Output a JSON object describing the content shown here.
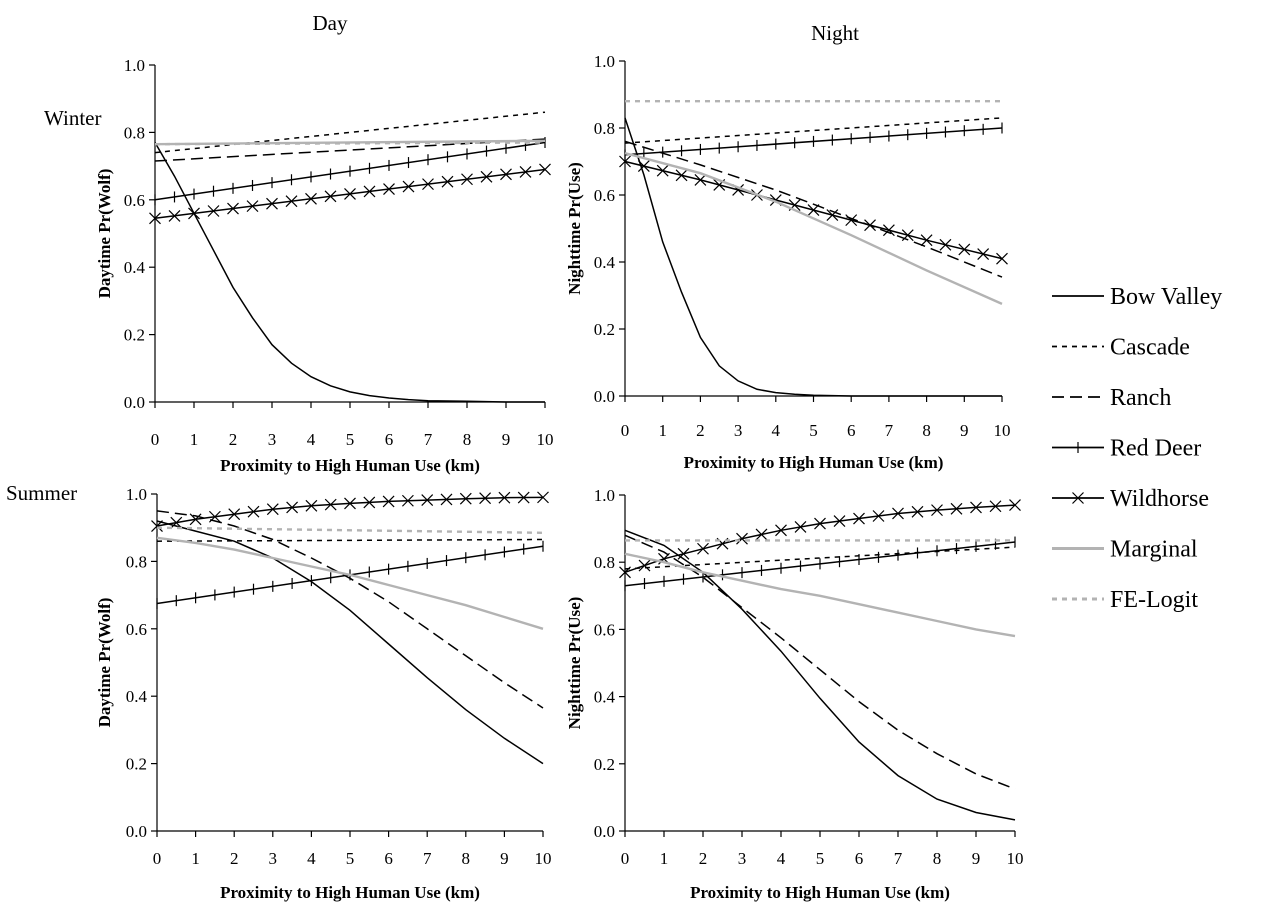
{
  "column_headers": [
    "Day",
    "Night"
  ],
  "row_headers": [
    "Winter",
    "Summer"
  ],
  "legend": {
    "items": [
      {
        "name": "Bow Valley",
        "color": "#000000",
        "dash": "solid",
        "marker": "none"
      },
      {
        "name": "Cascade",
        "color": "#000000",
        "dash": "short-dash",
        "marker": "none"
      },
      {
        "name": "Ranch",
        "color": "#000000",
        "dash": "long-dash",
        "marker": "none"
      },
      {
        "name": "Red Deer",
        "color": "#000000",
        "dash": "solid",
        "marker": "plus"
      },
      {
        "name": "Wildhorse",
        "color": "#000000",
        "dash": "solid",
        "marker": "x"
      },
      {
        "name": "Marginal",
        "color": "#b3b3b3",
        "dash": "solid",
        "marker": "none"
      },
      {
        "name": "FE-Logit",
        "color": "#b3b3b3",
        "dash": "short-dash",
        "marker": "none"
      }
    ],
    "placement": "right"
  },
  "chart_data": [
    {
      "type": "line",
      "panel": "winter-day",
      "xlabel": "Proximity to High Human Use (km)",
      "ylabel": "Daytime Pr(Wolf)",
      "x_ticks": [
        "0",
        "1",
        "2",
        "3",
        "4",
        "5",
        "6",
        "7",
        "8",
        "9",
        "10"
      ],
      "y_ticks": [
        "0.0",
        "0.2",
        "0.4",
        "0.6",
        "0.8",
        "1.0"
      ],
      "xlim": [
        0,
        10
      ],
      "ylim": [
        0,
        1
      ],
      "grid": false,
      "series": [
        {
          "name": "Bow Valley",
          "x": [
            0,
            0.5,
            1,
            1.5,
            2,
            2.5,
            3,
            3.5,
            4,
            4.5,
            5,
            5.5,
            6,
            6.5,
            7,
            7.5,
            8,
            9,
            10
          ],
          "values": [
            0.77,
            0.67,
            0.56,
            0.45,
            0.34,
            0.25,
            0.17,
            0.115,
            0.075,
            0.048,
            0.03,
            0.019,
            0.012,
            0.007,
            0.004,
            0.003,
            0.002,
            0.0,
            0.0
          ]
        },
        {
          "name": "Cascade",
          "x": [
            0,
            10
          ],
          "values": [
            0.74,
            0.86
          ]
        },
        {
          "name": "Ranch",
          "x": [
            0,
            10
          ],
          "values": [
            0.715,
            0.78
          ]
        },
        {
          "name": "Red Deer",
          "x": [
            0,
            10
          ],
          "values": [
            0.6,
            0.77
          ]
        },
        {
          "name": "Wildhorse",
          "x": [
            0,
            10
          ],
          "values": [
            0.545,
            0.69
          ]
        },
        {
          "name": "Marginal",
          "x": [
            0,
            10
          ],
          "values": [
            0.765,
            0.775
          ]
        },
        {
          "name": "FE-Logit",
          "x": [
            0,
            10
          ],
          "values": [
            0.765,
            0.77
          ]
        }
      ]
    },
    {
      "type": "line",
      "panel": "winter-night",
      "xlabel": "Proximity to High Human Use (km)",
      "ylabel": "Nighttime Pr(Use)",
      "x_ticks": [
        "0",
        "1",
        "2",
        "3",
        "4",
        "5",
        "6",
        "7",
        "8",
        "9",
        "10"
      ],
      "y_ticks": [
        "0.0",
        "0.2",
        "0.4",
        "0.6",
        "0.8",
        "1.0"
      ],
      "xlim": [
        0,
        10
      ],
      "ylim": [
        0,
        1
      ],
      "grid": false,
      "series": [
        {
          "name": "Bow Valley",
          "x": [
            0,
            0.5,
            1,
            1.5,
            2,
            2.5,
            3,
            3.5,
            4,
            4.5,
            5,
            6,
            7,
            8,
            9,
            10
          ],
          "values": [
            0.83,
            0.66,
            0.46,
            0.31,
            0.175,
            0.09,
            0.045,
            0.02,
            0.01,
            0.005,
            0.002,
            0.0,
            0.0,
            0.0,
            0.0,
            0.0
          ]
        },
        {
          "name": "Cascade",
          "x": [
            0,
            10
          ],
          "values": [
            0.755,
            0.83
          ]
        },
        {
          "name": "Ranch",
          "x": [
            0,
            2,
            4,
            6,
            8,
            10
          ],
          "values": [
            0.76,
            0.69,
            0.615,
            0.53,
            0.445,
            0.355
          ]
        },
        {
          "name": "Red Deer",
          "x": [
            0,
            10
          ],
          "values": [
            0.72,
            0.8
          ]
        },
        {
          "name": "Wildhorse",
          "x": [
            0,
            2,
            4,
            6,
            8,
            10
          ],
          "values": [
            0.7,
            0.645,
            0.585,
            0.525,
            0.465,
            0.41
          ]
        },
        {
          "name": "Marginal",
          "x": [
            0,
            2,
            4,
            6,
            8,
            10
          ],
          "values": [
            0.725,
            0.665,
            0.58,
            0.48,
            0.375,
            0.275
          ]
        },
        {
          "name": "FE-Logit",
          "x": [
            0,
            10
          ],
          "values": [
            0.88,
            0.88
          ]
        }
      ]
    },
    {
      "type": "line",
      "panel": "summer-day",
      "xlabel": "Proximity to High Human Use (km)",
      "ylabel": "Daytime Pr(Wolf)",
      "x_ticks": [
        "0",
        "1",
        "2",
        "3",
        "4",
        "5",
        "6",
        "7",
        "8",
        "9",
        "10"
      ],
      "y_ticks": [
        "0.0",
        "0.2",
        "0.4",
        "0.6",
        "0.8",
        "1.0"
      ],
      "xlim": [
        0,
        10
      ],
      "ylim": [
        0,
        1
      ],
      "grid": false,
      "series": [
        {
          "name": "Bow Valley",
          "x": [
            0,
            1,
            2,
            3,
            4,
            5,
            6,
            7,
            8,
            9,
            10
          ],
          "values": [
            0.92,
            0.89,
            0.86,
            0.81,
            0.74,
            0.655,
            0.555,
            0.455,
            0.36,
            0.275,
            0.2
          ]
        },
        {
          "name": "Cascade",
          "x": [
            0,
            10
          ],
          "values": [
            0.86,
            0.865
          ]
        },
        {
          "name": "Ranch",
          "x": [
            0,
            1,
            2,
            3,
            4,
            5,
            6,
            7,
            8,
            9,
            10
          ],
          "values": [
            0.95,
            0.935,
            0.905,
            0.865,
            0.81,
            0.75,
            0.68,
            0.6,
            0.52,
            0.44,
            0.365
          ]
        },
        {
          "name": "Red Deer",
          "x": [
            0,
            10
          ],
          "values": [
            0.675,
            0.845
          ]
        },
        {
          "name": "Wildhorse",
          "x": [
            0,
            1,
            2,
            3,
            4,
            5,
            6,
            7,
            8,
            9,
            10
          ],
          "values": [
            0.905,
            0.925,
            0.94,
            0.955,
            0.965,
            0.972,
            0.978,
            0.982,
            0.986,
            0.989,
            0.99
          ]
        },
        {
          "name": "Marginal",
          "x": [
            0,
            1,
            2,
            3,
            4,
            5,
            6,
            7,
            8,
            9,
            10
          ],
          "values": [
            0.87,
            0.855,
            0.835,
            0.81,
            0.785,
            0.76,
            0.73,
            0.7,
            0.67,
            0.635,
            0.6
          ]
        },
        {
          "name": "FE-Logit",
          "x": [
            0,
            10
          ],
          "values": [
            0.9,
            0.885
          ]
        }
      ]
    },
    {
      "type": "line",
      "panel": "summer-night",
      "xlabel": "Proximity to High Human Use (km)",
      "ylabel": "Nighttime Pr(Use)",
      "x_ticks": [
        "0",
        "1",
        "2",
        "3",
        "4",
        "5",
        "6",
        "7",
        "8",
        "9",
        "10"
      ],
      "y_ticks": [
        "0.0",
        "0.2",
        "0.4",
        "0.6",
        "0.8",
        "1.0"
      ],
      "xlim": [
        0,
        10
      ],
      "ylim": [
        0,
        1
      ],
      "grid": false,
      "series": [
        {
          "name": "Bow Valley",
          "x": [
            0,
            1,
            2,
            3,
            4,
            5,
            6,
            7,
            8,
            9,
            10
          ],
          "values": [
            0.895,
            0.85,
            0.77,
            0.66,
            0.535,
            0.395,
            0.265,
            0.165,
            0.095,
            0.055,
            0.033
          ]
        },
        {
          "name": "Cascade",
          "x": [
            0,
            10
          ],
          "values": [
            0.78,
            0.845
          ]
        },
        {
          "name": "Ranch",
          "x": [
            0,
            1,
            2,
            3,
            4,
            5,
            6,
            7,
            8,
            9,
            10
          ],
          "values": [
            0.88,
            0.83,
            0.755,
            0.665,
            0.575,
            0.48,
            0.385,
            0.3,
            0.23,
            0.17,
            0.125
          ]
        },
        {
          "name": "Red Deer",
          "x": [
            0,
            10
          ],
          "values": [
            0.73,
            0.86
          ]
        },
        {
          "name": "Wildhorse",
          "x": [
            0,
            1,
            2,
            3,
            4,
            5,
            6,
            7,
            8,
            9,
            10
          ],
          "values": [
            0.77,
            0.81,
            0.84,
            0.87,
            0.895,
            0.915,
            0.93,
            0.945,
            0.955,
            0.963,
            0.97
          ]
        },
        {
          "name": "Marginal",
          "x": [
            0,
            1,
            2,
            3,
            4,
            5,
            6,
            7,
            8,
            9,
            10
          ],
          "values": [
            0.825,
            0.8,
            0.77,
            0.745,
            0.72,
            0.7,
            0.675,
            0.65,
            0.625,
            0.6,
            0.58
          ]
        },
        {
          "name": "FE-Logit",
          "x": [
            0,
            10
          ],
          "values": [
            0.865,
            0.865
          ]
        }
      ]
    }
  ]
}
